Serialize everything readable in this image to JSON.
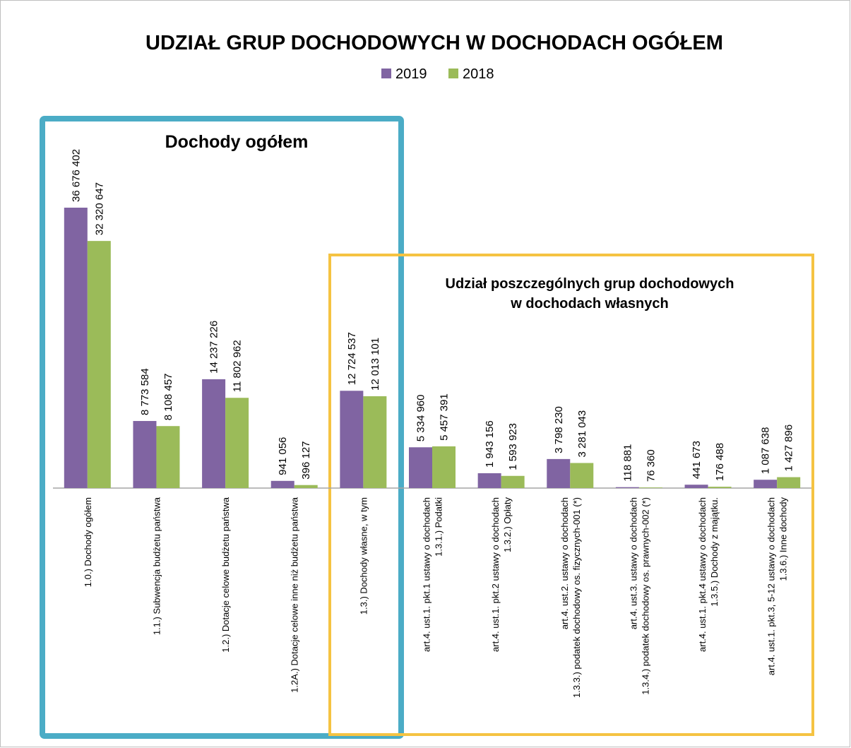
{
  "chart_data": {
    "type": "bar",
    "title": "UDZIAŁ GRUP DOCHODOWYCH W DOCHODACH OGÓŁEM",
    "annotations": [
      [
        "Dochody ogółem"
      ],
      [
        "Udział poszczególnych grup dochodowych",
        "w dochodach  własnych"
      ]
    ],
    "categories": [
      [
        "1.0.) Dochody ogółem"
      ],
      [
        "1.1.) Subwencja budżetu państwa"
      ],
      [
        "1.2.) Dotacje celowe budżetu państwa"
      ],
      [
        "1.2A.) Dotacje celowe inne niż budżetu państwa"
      ],
      [
        "1.3.) Dochody własne,  w tym"
      ],
      [
        "art.4. ust.1. pkt.1 ustawy o dochodach",
        "1.3.1.) Podatki"
      ],
      [
        "art.4. ust.1. pkt.2 ustawy o dochodach",
        "1.3.2.) Opłaty"
      ],
      [
        "art.4. ust.2. ustawy o dochodach",
        "1.3.3.) podatek dochodowy os. fizycznych-001 (*)"
      ],
      [
        "art.4. ust.3. ustawy o dochodach",
        "1.3.4.) podatek dochodowy os. prawnych-002 (*)"
      ],
      [
        "art.4. ust.1. pkt.4 ustawy o dochodach",
        "1.3.5.) Dochody z majątku."
      ],
      [
        "art.4. ust.1. pkt.3, 5-12 ustawy o dochodach",
        "1.3.6.) Inne dochody"
      ]
    ],
    "series": [
      {
        "name": "2019",
        "color": "#8064a2",
        "values": [
          36676402,
          8773584,
          14237226,
          941056,
          12724537,
          5334960,
          1943156,
          3798230,
          118881,
          441673,
          1087638
        ],
        "value_labels": [
          "36 676 402",
          "8 773 584",
          "14 237 226",
          "941 056",
          "12 724 537",
          "5 334 960",
          "1 943 156",
          "3 798 230",
          "118 881",
          "441 673",
          "1 087 638"
        ]
      },
      {
        "name": "2018",
        "color": "#9bbb59",
        "values": [
          32320647,
          8108457,
          11802962,
          396127,
          12013101,
          5457391,
          1593923,
          3281043,
          76360,
          176488,
          1427896
        ],
        "value_labels": [
          "32 320 647",
          "8 108 457",
          "11 802 962",
          "396 127",
          "12 013 101",
          "5 457 391",
          "1 593 923",
          "3 281 043",
          "76 360",
          "176 488",
          "1 427 896"
        ]
      }
    ],
    "legend": "top"
  }
}
